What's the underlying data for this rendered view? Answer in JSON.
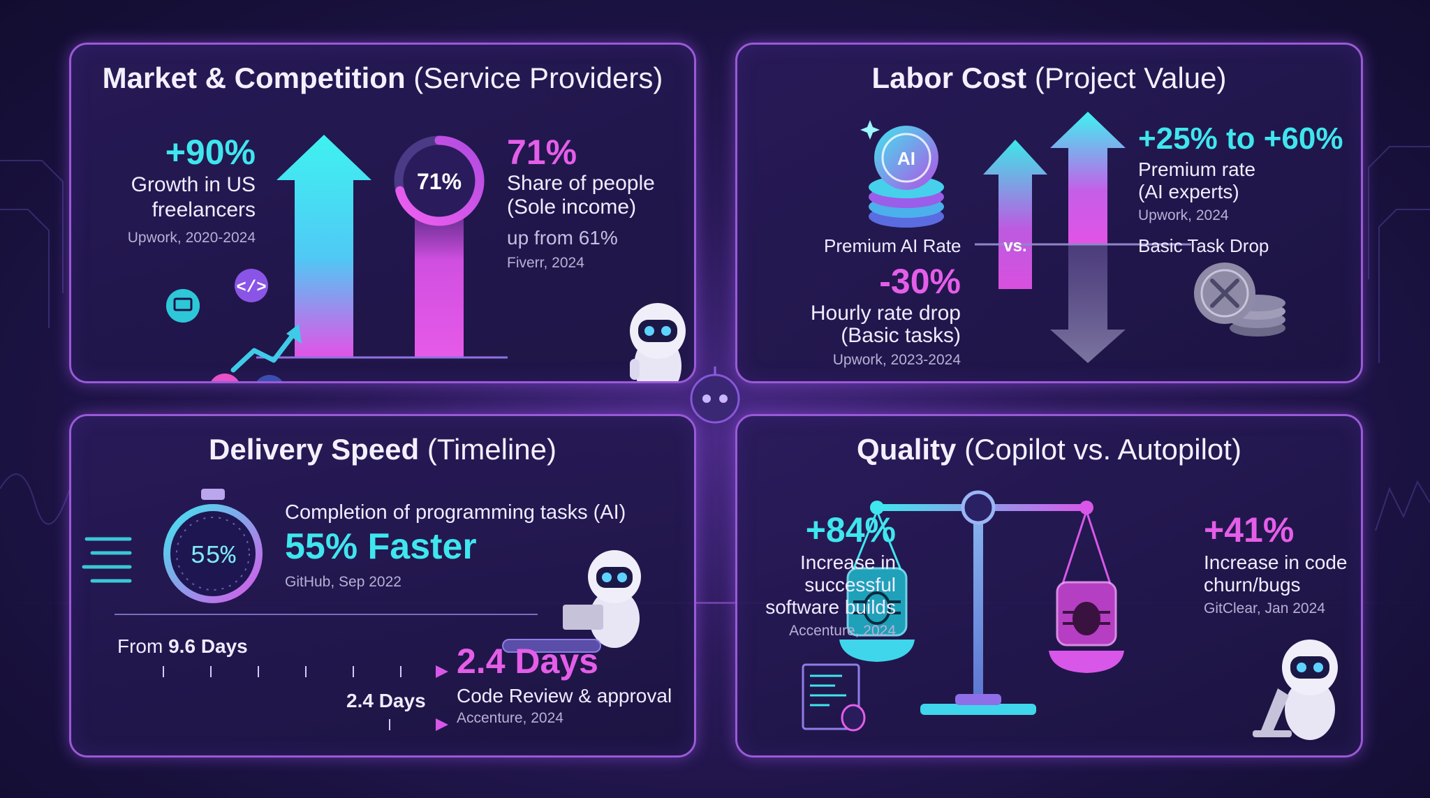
{
  "colors": {
    "cyan": "#3fe6ee",
    "magenta": "#e45ee8",
    "panel_border": "#9a5ad6",
    "background": "#1a1240"
  },
  "market": {
    "title_bold": "Market & Competition",
    "title_rest": "(Service Providers)",
    "growth_value": "+90%",
    "growth_label_1": "Growth in US",
    "growth_label_2": "freelancers",
    "growth_source": "Upwork, 2020-2024",
    "ring_label": "71%",
    "ring_fraction": 0.71,
    "share_value": "71%",
    "share_label_1": "Share of people",
    "share_label_2": "(Sole income)",
    "share_sub": "up from 61%",
    "share_source": "Fiverr, 2024"
  },
  "labor": {
    "title_bold": "Labor Cost",
    "title_rest": "(Project Value)",
    "coin_label": "AI",
    "premium_ai_rate": "Premium AI Rate",
    "vs": "vs.",
    "drop_value": "-30%",
    "drop_label_1": "Hourly rate drop",
    "drop_label_2": "(Basic tasks)",
    "drop_source": "Upwork, 2023-2024",
    "premium_value": "+25% to +60%",
    "premium_label_1": "Premium rate",
    "premium_label_2": "(AI experts)",
    "premium_source": "Upwork, 2024",
    "basic_task_drop": "Basic Task Drop"
  },
  "delivery": {
    "title_bold": "Delivery Speed",
    "title_rest": "(Timeline)",
    "stopwatch_label": "55%",
    "completion_label": "Completion of programming tasks (AI)",
    "faster_value": "55% Faster",
    "faster_source": "GitHub, Sep 2022",
    "from_prefix": "From ",
    "from_value": "9.6 Days",
    "to_value": "2.4 Days",
    "result_value": "2.4 Days",
    "result_label": "Code Review & approval",
    "result_source": "Accenture, 2024"
  },
  "quality": {
    "title_bold": "Quality",
    "title_rest": "(Copilot vs. Autopilot)",
    "left_value": "+84%",
    "left_label_1": "Increase in",
    "left_label_2": "successful",
    "left_label_3": "software builds",
    "left_source": "Accenture, 2024",
    "right_value": "+41%",
    "right_label_1": "Increase in code",
    "right_label_2": "churn/bugs",
    "right_source": "GitClear, Jan 2024"
  }
}
